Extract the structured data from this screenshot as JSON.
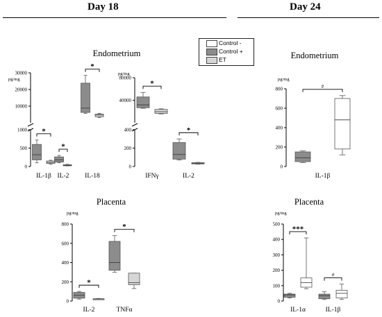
{
  "headers": {
    "day18": "Day 18",
    "day24": "Day 24"
  },
  "legend": {
    "items": [
      {
        "label": "Control -",
        "color": "#ffffff"
      },
      {
        "label": "Control +",
        "color": "#8c8c8c"
      },
      {
        "label": "ET",
        "color": "#d6d6d6"
      }
    ]
  },
  "colors": {
    "control_neg": "#ffffff",
    "control_pos": "#8c8c8c",
    "et": "#d6d6d6"
  },
  "section_titles": {
    "d18_endometrium": "Endometrium",
    "d18_placenta": "Placenta",
    "d24_endometrium": "Endometrium",
    "d24_placenta": "Placenta"
  },
  "chart_data": [
    {
      "id": "d18_endo_a",
      "type": "box",
      "title": "Endometrium",
      "ylabel": "pg/mg",
      "axis_break": true,
      "lower_ylim": [
        0,
        1000
      ],
      "lower_ticks": [
        0,
        500,
        1000
      ],
      "upper_ylim": [
        0,
        30000
      ],
      "upper_ticks": [
        10000,
        20000,
        30000
      ],
      "categories": [
        "IL-1β",
        "IL-2",
        "IL-18"
      ],
      "boxes": [
        {
          "category": "IL-1β",
          "group": "Control +",
          "min": 100,
          "q1": 180,
          "median": 320,
          "q3": 600,
          "max": 720
        },
        {
          "category": "IL-1β",
          "group": "ET",
          "min": 60,
          "q1": 80,
          "median": 110,
          "q3": 150,
          "max": 170
        },
        {
          "category": "IL-2",
          "group": "Control +",
          "min": 100,
          "q1": 120,
          "median": 180,
          "q3": 260,
          "max": 300
        },
        {
          "category": "IL-2",
          "group": "ET",
          "min": 15,
          "q1": 20,
          "median": 30,
          "q3": 50,
          "max": 60
        },
        {
          "category": "IL-18",
          "group": "Control +",
          "min": 6500,
          "q1": 7000,
          "median": 9500,
          "q3": 24000,
          "max": 28500
        },
        {
          "category": "IL-18",
          "group": "ET",
          "min": 4000,
          "q1": 4500,
          "median": 5500,
          "q3": 6000,
          "max": 6500
        }
      ],
      "significance": [
        {
          "category": "IL-1β",
          "label": "*"
        },
        {
          "category": "IL-2",
          "label": "*"
        },
        {
          "category": "IL-18",
          "label": "*"
        }
      ]
    },
    {
      "id": "d18_endo_b",
      "type": "box",
      "ylabel": "pg/mg",
      "axis_break": true,
      "lower_ylim": [
        0,
        400
      ],
      "lower_ticks": [
        0,
        200,
        400
      ],
      "upper_ylim": [
        0,
        80000
      ],
      "upper_ticks": [
        40000,
        80000
      ],
      "categories": [
        "IFNγ",
        "IL-2"
      ],
      "boxes": [
        {
          "category": "IFNγ",
          "group": "Control +",
          "min": 26000,
          "q1": 27000,
          "median": 32000,
          "q3": 46000,
          "max": 54000
        },
        {
          "category": "IFNγ",
          "group": "ET",
          "min": 16000,
          "q1": 17000,
          "median": 20000,
          "q3": 24000,
          "max": 25000
        },
        {
          "category": "IL-2",
          "group": "Control +",
          "min": 70,
          "q1": 80,
          "median": 130,
          "q3": 260,
          "max": 300
        },
        {
          "category": "IL-2",
          "group": "ET",
          "min": 25,
          "q1": 28,
          "median": 35,
          "q3": 42,
          "max": 45
        }
      ],
      "significance": [
        {
          "category": "IFNγ",
          "label": "*"
        },
        {
          "category": "IL-2",
          "label": "*"
        }
      ]
    },
    {
      "id": "d18_placenta",
      "type": "box",
      "title": "Placenta",
      "ylabel": "pg/mg",
      "ylim": [
        0,
        800
      ],
      "ticks": [
        0,
        200,
        400,
        600,
        800
      ],
      "categories": [
        "IL-2",
        "TNFα"
      ],
      "boxes": [
        {
          "category": "IL-2",
          "group": "Control +",
          "min": 20,
          "q1": 30,
          "median": 60,
          "q3": 90,
          "max": 100
        },
        {
          "category": "IL-2",
          "group": "ET",
          "min": 18,
          "q1": 20,
          "median": 22,
          "q3": 24,
          "max": 26
        },
        {
          "category": "TNFα",
          "group": "Control +",
          "min": 300,
          "q1": 320,
          "median": 400,
          "q3": 620,
          "max": 680
        },
        {
          "category": "TNFα",
          "group": "ET",
          "min": 130,
          "q1": 170,
          "median": 190,
          "q3": 290,
          "max": 290
        }
      ],
      "significance": [
        {
          "category": "IL-2",
          "label": "*"
        },
        {
          "category": "TNFα",
          "label": "*"
        }
      ]
    },
    {
      "id": "d24_endometrium",
      "type": "box",
      "title": "Endometrium",
      "ylabel": "pg/mg",
      "ylim": [
        0,
        800
      ],
      "ticks": [
        0,
        200,
        400,
        600,
        800
      ],
      "categories": [
        "IL-1β"
      ],
      "boxes": [
        {
          "category": "IL-1β",
          "group": "Control +",
          "min": 40,
          "q1": 50,
          "median": 90,
          "q3": 150,
          "max": 160
        },
        {
          "category": "IL-1β",
          "group": "Control -",
          "min": 120,
          "q1": 180,
          "median": 480,
          "q3": 700,
          "max": 730
        }
      ],
      "significance": [
        {
          "category": "IL-1β",
          "label": "#"
        }
      ]
    },
    {
      "id": "d24_placenta",
      "type": "box",
      "title": "Placenta",
      "ylabel": "pg/mg",
      "ylim": [
        0,
        500
      ],
      "ticks": [
        0,
        100,
        200,
        300,
        400,
        500
      ],
      "categories": [
        "IL-1α",
        "IL-1β"
      ],
      "boxes": [
        {
          "category": "IL-1α",
          "group": "Control +",
          "min": 20,
          "q1": 25,
          "median": 40,
          "q3": 45,
          "max": 50
        },
        {
          "category": "IL-1α",
          "group": "Control -",
          "min": 80,
          "q1": 90,
          "median": 120,
          "q3": 150,
          "max": 410
        },
        {
          "category": "IL-1β",
          "group": "Control +",
          "min": 10,
          "q1": 15,
          "median": 35,
          "q3": 45,
          "max": 60
        },
        {
          "category": "IL-1β",
          "group": "Control -",
          "min": 10,
          "q1": 20,
          "median": 50,
          "q3": 70,
          "max": 110
        }
      ],
      "significance": [
        {
          "category": "IL-1α",
          "label": "***"
        },
        {
          "category": "IL-1β",
          "label": "#"
        }
      ]
    }
  ]
}
